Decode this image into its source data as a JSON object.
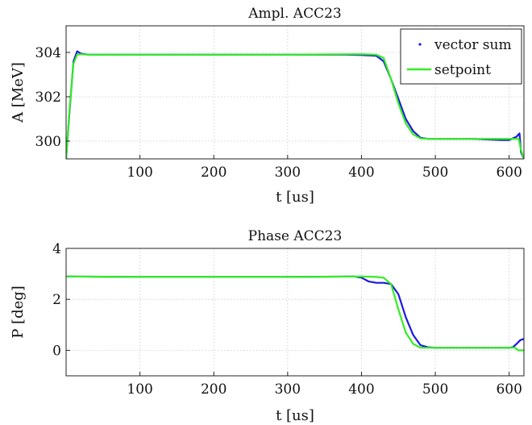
{
  "chart_data": [
    {
      "type": "line",
      "title": "Ampl. ACC23",
      "xlabel": "t [us]",
      "ylabel": "A [MeV]",
      "xlim": [
        0,
        620
      ],
      "ylim": [
        299.2,
        305.2
      ],
      "xticks": [
        100,
        200,
        300,
        400,
        500,
        600
      ],
      "xtick_labels": [
        "100",
        "200",
        "300",
        "400",
        "500",
        "600"
      ],
      "yticks": [
        300,
        302,
        304
      ],
      "ytick_labels": [
        "300",
        "302",
        "304"
      ],
      "grid": true,
      "legend": {
        "position": "top-right"
      },
      "series": [
        {
          "name": "vector sum",
          "color": "#1a1adc",
          "x": [
            0,
            5,
            10,
            15,
            20,
            30,
            100,
            200,
            300,
            380,
            400,
            420,
            430,
            440,
            450,
            460,
            470,
            480,
            490,
            500,
            550,
            590,
            600,
            610,
            614,
            616,
            620
          ],
          "y": [
            299.2,
            301.5,
            303.6,
            304.05,
            303.95,
            303.9,
            303.9,
            303.9,
            303.9,
            303.9,
            303.88,
            303.85,
            303.6,
            302.8,
            301.9,
            301.0,
            300.45,
            300.15,
            300.1,
            300.1,
            300.1,
            300.05,
            300.05,
            300.2,
            300.35,
            299.5,
            299.2
          ]
        },
        {
          "name": "setpoint",
          "color": "#33ee22",
          "x": [
            0,
            5,
            10,
            15,
            20,
            30,
            100,
            200,
            300,
            400,
            420,
            430,
            440,
            450,
            460,
            470,
            480,
            490,
            500,
            550,
            600,
            610,
            613,
            616,
            620
          ],
          "y": [
            299.2,
            301.6,
            303.5,
            303.9,
            303.92,
            303.9,
            303.9,
            303.9,
            303.9,
            303.92,
            303.9,
            303.75,
            302.8,
            301.7,
            300.8,
            300.3,
            300.12,
            300.1,
            300.1,
            300.1,
            300.1,
            300.1,
            300.1,
            299.6,
            299.2
          ]
        }
      ]
    },
    {
      "type": "line",
      "title": "Phase ACC23",
      "xlabel": "t [us]",
      "ylabel": "P [deg]",
      "xlim": [
        0,
        620
      ],
      "ylim": [
        -1,
        4
      ],
      "xticks": [
        100,
        200,
        300,
        400,
        500,
        600
      ],
      "xtick_labels": [
        "100",
        "200",
        "300",
        "400",
        "500",
        "600"
      ],
      "yticks": [
        0,
        2,
        4
      ],
      "ytick_labels": [
        "0",
        "2",
        "4"
      ],
      "grid": true,
      "series": [
        {
          "name": "vector sum",
          "color": "#1a1adc",
          "x": [
            0,
            100,
            200,
            300,
            390,
            400,
            410,
            420,
            430,
            440,
            450,
            460,
            470,
            480,
            490,
            500,
            550,
            600,
            605,
            610,
            615,
            620
          ],
          "y": [
            2.9,
            2.88,
            2.88,
            2.88,
            2.9,
            2.85,
            2.7,
            2.65,
            2.65,
            2.6,
            2.2,
            1.3,
            0.6,
            0.2,
            0.12,
            0.1,
            0.1,
            0.1,
            0.12,
            0.25,
            0.4,
            0.45
          ],
          "style": "line"
        },
        {
          "name": "setpoint",
          "color": "#33ee22",
          "x": [
            0,
            100,
            200,
            300,
            400,
            420,
            430,
            440,
            450,
            460,
            470,
            480,
            490,
            500,
            550,
            600,
            608,
            612,
            620
          ],
          "y": [
            2.9,
            2.88,
            2.88,
            2.88,
            2.9,
            2.88,
            2.85,
            2.6,
            1.6,
            0.7,
            0.25,
            0.1,
            0.1,
            0.1,
            0.1,
            0.1,
            0.1,
            0.0,
            0.0
          ],
          "style": "line"
        }
      ]
    }
  ]
}
